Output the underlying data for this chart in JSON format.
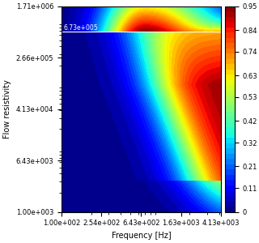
{
  "freq_min": 100,
  "freq_max": 4130,
  "flow_min": 1000,
  "flow_max": 1710000,
  "hline_y": 673000,
  "hline_label": "6.73e+005",
  "colorbar_ticks": [
    0,
    0.11,
    0.21,
    0.32,
    0.42,
    0.53,
    0.63,
    0.74,
    0.84,
    0.95
  ],
  "xlabel": "Frequency [Hz]",
  "ylabel": "Flow resistivity",
  "xticks": [
    100,
    254,
    643,
    1630,
    4130
  ],
  "xtick_labels": [
    "1.00e+002",
    "2.54e+002",
    "6.43e+002",
    "1.63e+003",
    "4.13e+003"
  ],
  "yticks": [
    1000,
    6430,
    41300,
    266000,
    1710000
  ],
  "ytick_labels": [
    "1.00e+003",
    "6.43e+003",
    "4.13e+004",
    "2.66e+005",
    "1.71e+006"
  ],
  "cmap": "jet",
  "vmin": 0,
  "vmax": 0.95
}
